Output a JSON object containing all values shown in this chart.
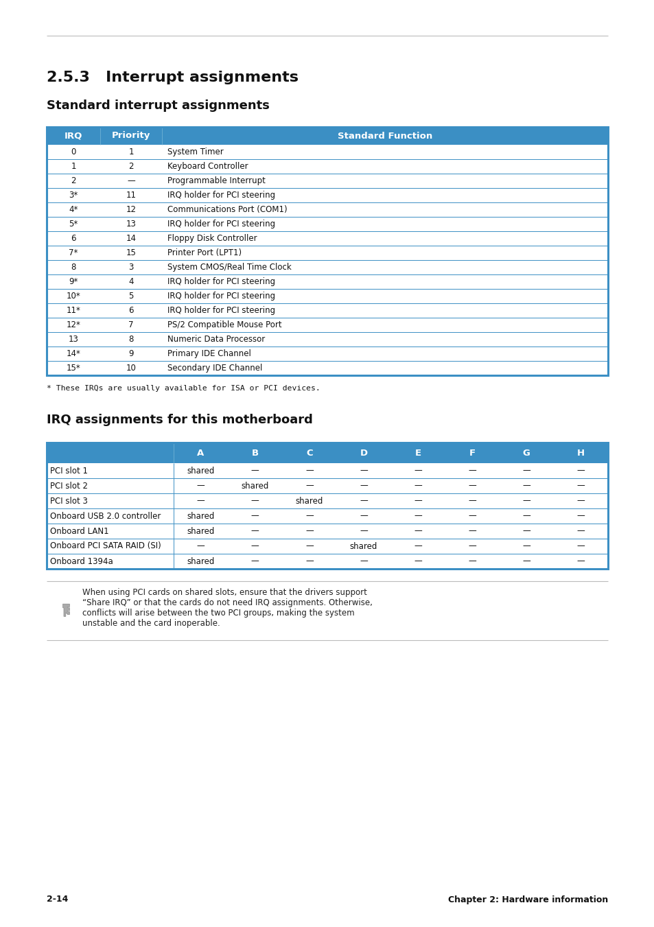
{
  "page_title": "2.5.3   Interrupt assignments",
  "section1_title": "Standard interrupt assignments",
  "section2_title": "IRQ assignments for this motherboard",
  "header_color": "#3b8fc4",
  "header_text_color": "#ffffff",
  "table1_header": [
    "IRQ",
    "Priority",
    "Standard Function"
  ],
  "table1_rows": [
    [
      "0",
      "1",
      "System Timer"
    ],
    [
      "1",
      "2",
      "Keyboard Controller"
    ],
    [
      "2",
      "—",
      "Programmable Interrupt"
    ],
    [
      "3*",
      "11",
      "IRQ holder for PCI steering"
    ],
    [
      "4*",
      "12",
      "Communications Port (COM1)"
    ],
    [
      "5*",
      "13",
      "IRQ holder for PCI steering"
    ],
    [
      "6",
      "14",
      "Floppy Disk Controller"
    ],
    [
      "7*",
      "15",
      "Printer Port (LPT1)"
    ],
    [
      "8",
      "3",
      "System CMOS/Real Time Clock"
    ],
    [
      "9*",
      "4",
      "IRQ holder for PCI steering"
    ],
    [
      "10*",
      "5",
      "IRQ holder for PCI steering"
    ],
    [
      "11*",
      "6",
      "IRQ holder for PCI steering"
    ],
    [
      "12*",
      "7",
      "PS/2 Compatible Mouse Port"
    ],
    [
      "13",
      "8",
      "Numeric Data Processor"
    ],
    [
      "14*",
      "9",
      "Primary IDE Channel"
    ],
    [
      "15*",
      "10",
      "Secondary IDE Channel"
    ]
  ],
  "footnote": "* These IRQs are usually available for ISA or PCI devices.",
  "table2_header": [
    "",
    "A",
    "B",
    "C",
    "D",
    "E",
    "F",
    "G",
    "H"
  ],
  "table2_rows": [
    [
      "PCI slot 1",
      "shared",
      "—",
      "—",
      "—",
      "—",
      "—",
      "—",
      "—"
    ],
    [
      "PCI slot 2",
      "—",
      "shared",
      "—",
      "—",
      "—",
      "—",
      "—",
      "—"
    ],
    [
      "PCI slot 3",
      "—",
      "—",
      "shared",
      "—",
      "—",
      "—",
      "—",
      "—"
    ],
    [
      "Onboard USB 2.0 controller",
      "shared",
      "—",
      "—",
      "—",
      "—",
      "—",
      "—",
      "—"
    ],
    [
      "Onboard LAN1",
      "shared",
      "—",
      "—",
      "—",
      "—",
      "—",
      "—",
      "—"
    ],
    [
      "Onboard PCI SATA RAID (SI)",
      "—",
      "—",
      "—",
      "shared",
      "—",
      "—",
      "—",
      "—"
    ],
    [
      "Onboard 1394a",
      "shared",
      "—",
      "—",
      "—",
      "—",
      "—",
      "—",
      "—"
    ]
  ],
  "note_lines": [
    "When using PCI cards on shared slots, ensure that the drivers support",
    "“Share IRQ” or that the cards do not need IRQ assignments. Otherwise,",
    "conflicts will arise between the two PCI groups, making the system",
    "unstable and the card inoperable."
  ],
  "footer_left": "2-14",
  "footer_right": "Chapter 2: Hardware information",
  "bg_color": "#ffffff",
  "row_line_color": "#3b8fc4",
  "table_border_color": "#3b8fc4",
  "body_text_color": "#000000"
}
